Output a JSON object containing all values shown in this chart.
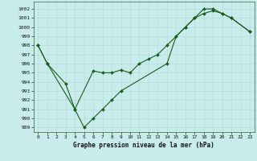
{
  "title": "Graphe pression niveau de la mer (hPa)",
  "background_color": "#c8ecec",
  "grid_color": "#b0d8d8",
  "line_color": "#1a5c1a",
  "marker_color": "#1a5c1a",
  "ylim": [
    988.5,
    1002.8
  ],
  "xlim": [
    -0.5,
    23.5
  ],
  "yticks": [
    989,
    990,
    991,
    992,
    993,
    994,
    995,
    996,
    997,
    998,
    999,
    1000,
    1001,
    1002
  ],
  "xticks": [
    0,
    1,
    2,
    3,
    4,
    5,
    6,
    7,
    8,
    9,
    10,
    11,
    12,
    13,
    14,
    15,
    16,
    17,
    18,
    19,
    20,
    21,
    22,
    23
  ],
  "line1_x": [
    0,
    1,
    4,
    5,
    6,
    7,
    8,
    9,
    14,
    15,
    16,
    17,
    18,
    19,
    20,
    21,
    23
  ],
  "line1_y": [
    998,
    996,
    991,
    989,
    990,
    991,
    992,
    993,
    996,
    999,
    1000,
    1001,
    1001.5,
    1001.8,
    1001.5,
    1001,
    999.5
  ],
  "line2_x": [
    0,
    1,
    3,
    4,
    6,
    7,
    8,
    9,
    10,
    11,
    12,
    13,
    14,
    16,
    17,
    18,
    19,
    20,
    21,
    23
  ],
  "line2_y": [
    998,
    996,
    993.8,
    991,
    995.2,
    995,
    995,
    995.3,
    995,
    996,
    996.5,
    997,
    998,
    1000,
    1001,
    1002,
    1002,
    1001.5,
    1001,
    999.5
  ],
  "title_fontsize": 5.5,
  "tick_fontsize": 4.5,
  "line_width": 0.8,
  "marker_size": 2.0
}
